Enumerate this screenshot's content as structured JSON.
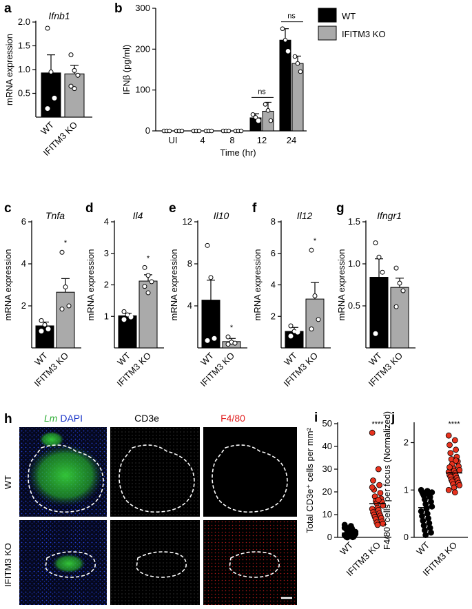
{
  "colors": {
    "wt": "#000000",
    "ko": "#aaaaaa",
    "ko_dot": "#e8321e",
    "dapi": "#1a35c8",
    "lm": "#2fce36",
    "f480": "#e12020",
    "cd3": "#ffffff"
  },
  "microscopy": {
    "header_lm": "Lm",
    "header_dapi": "DAPI",
    "header_cd3": "CD3e",
    "header_f480": "F4/80",
    "row_wt": "WT",
    "row_ko": "IFITM3 KO"
  },
  "chart_data": [
    {
      "panel": "a",
      "type": "bar",
      "title": "Ifnb1",
      "ylabel": "mRNA expression",
      "ylim": [
        0,
        2.0
      ],
      "yticks": [
        "0.5",
        "1.0",
        "1.5",
        "2.0"
      ],
      "ytick_values": [
        0.5,
        1.0,
        1.5,
        2.0
      ],
      "categories": [
        "WT",
        "IFITM3 KO"
      ],
      "values": [
        0.93,
        0.91
      ],
      "errors": [
        0.38,
        0.18
      ],
      "points": [
        [
          1.87,
          0.95,
          0.4,
          0.18
        ],
        [
          1.31,
          0.98,
          0.88,
          0.65,
          0.6
        ]
      ],
      "significance": ""
    },
    {
      "panel": "b",
      "type": "bar",
      "ylabel": "IFNβ (pg/ml)",
      "xlabel": "Time (hr)",
      "ylim": [
        0,
        300
      ],
      "yticks": [
        "0",
        "100",
        "200",
        "300"
      ],
      "ytick_values": [
        0,
        100,
        200,
        300
      ],
      "categories": [
        "UI",
        "4",
        "8",
        "12",
        "24"
      ],
      "series": [
        {
          "name": "WT",
          "values": [
            0,
            0,
            0,
            32,
            222
          ],
          "errors": [
            0,
            0,
            0,
            10,
            28
          ],
          "points": [
            [
              0,
              0,
              0
            ],
            [
              0,
              0,
              0
            ],
            [
              0,
              0,
              0
            ],
            [
              40,
              33,
              25
            ],
            [
              250,
              222,
              195
            ]
          ]
        },
        {
          "name": "IFITM3 KO",
          "values": [
            0,
            0,
            0,
            48,
            165
          ],
          "errors": [
            0,
            0,
            0,
            22,
            18
          ],
          "points": [
            [
              0,
              0,
              0
            ],
            [
              0,
              0,
              0
            ],
            [
              0,
              0,
              0
            ],
            [
              65,
              50,
              25
            ],
            [
              182,
              165,
              145
            ]
          ]
        }
      ],
      "significance": [
        {
          "group": "12",
          "text": "ns"
        },
        {
          "group": "24",
          "text": "ns"
        }
      ]
    },
    {
      "panel": "c",
      "type": "bar",
      "title": "Tnfa",
      "ylabel": "mRNA expression",
      "ylim": [
        0,
        6
      ],
      "yticks": [
        "2",
        "4",
        "6"
      ],
      "ytick_values": [
        2,
        4,
        6
      ],
      "categories": [
        "WT",
        "IFITM3 KO"
      ],
      "values": [
        1.05,
        2.65
      ],
      "errors": [
        0.18,
        0.65
      ],
      "points": [
        [
          1.3,
          1.1,
          0.9,
          0.8
        ],
        [
          4.55,
          2.9,
          2.0,
          1.85
        ]
      ],
      "significance": "*"
    },
    {
      "panel": "d",
      "type": "bar",
      "title": "Il4",
      "ylabel": "mRNA expression",
      "ylim": [
        0,
        4
      ],
      "yticks": [
        "1",
        "2",
        "3",
        "4"
      ],
      "ytick_values": [
        1,
        2,
        3,
        4
      ],
      "categories": [
        "WT",
        "IFITM3 KO"
      ],
      "values": [
        1.02,
        2.12
      ],
      "errors": [
        0.08,
        0.2
      ],
      "points": [
        [
          1.15,
          1.05,
          0.98,
          0.9
        ],
        [
          2.55,
          2.3,
          2.1,
          1.95,
          1.75
        ]
      ],
      "significance": "*"
    },
    {
      "panel": "e",
      "type": "bar",
      "title": "Il10",
      "ylabel": "mRNA expression",
      "ylim": [
        0,
        12
      ],
      "yticks": [
        "4",
        "8",
        "12"
      ],
      "ytick_values": [
        4,
        8,
        12
      ],
      "categories": [
        "WT",
        "IFITM3 KO"
      ],
      "values": [
        4.55,
        0.6
      ],
      "errors": [
        1.9,
        0.3
      ],
      "points": [
        [
          9.75,
          6.7,
          0.9,
          0.7
        ],
        [
          1.05,
          0.55,
          0.45,
          0.35
        ]
      ],
      "significance": "*"
    },
    {
      "panel": "f",
      "type": "bar",
      "title": "Il12",
      "ylabel": "mRNA expression",
      "ylim": [
        0,
        8
      ],
      "yticks": [
        "2",
        "4",
        "6",
        "8"
      ],
      "ytick_values": [
        2,
        4,
        6,
        8
      ],
      "categories": [
        "WT",
        "IFITM3 KO"
      ],
      "values": [
        1.05,
        3.1
      ],
      "errors": [
        0.25,
        1.05
      ],
      "points": [
        [
          1.4,
          1.05,
          1.0,
          0.75
        ],
        [
          6.2,
          3.3,
          1.8,
          1.2
        ]
      ],
      "significance": "*"
    },
    {
      "panel": "g",
      "type": "bar",
      "title": "Ifngr1",
      "ylabel": "mRNA expression",
      "ylim": [
        0,
        1.5
      ],
      "yticks": [
        "0.5",
        "1.0",
        "1.5"
      ],
      "ytick_values": [
        0.5,
        1.0,
        1.5
      ],
      "categories": [
        "WT",
        "IFITM3 KO"
      ],
      "values": [
        0.84,
        0.72
      ],
      "errors": [
        0.22,
        0.11
      ],
      "points": [
        [
          1.25,
          1.08,
          0.9,
          0.17
        ],
        [
          0.95,
          0.77,
          0.68,
          0.49
        ]
      ],
      "significance": ""
    },
    {
      "panel": "i",
      "type": "scatter",
      "ylabel": "Total CD3e⁺ cells per mm²",
      "ylim": [
        0,
        50
      ],
      "yticks": [
        "0",
        "10",
        "20",
        "30",
        "40",
        "50"
      ],
      "ytick_values": [
        0,
        10,
        20,
        30,
        40,
        50
      ],
      "categories": [
        "WT",
        "IFITM3 KO"
      ],
      "means": [
        1.9,
        14.8
      ],
      "points": [
        [
          5.5,
          5.0,
          4.5,
          4.0,
          3.5,
          3.0,
          2.8,
          2.5,
          2.2,
          2.0,
          1.8,
          1.5,
          1.3,
          1.0,
          0.8,
          0.6,
          0.4,
          0.2,
          0.1,
          0.0,
          0.3,
          0.7,
          1.1,
          1.7,
          2.4,
          3.2,
          4.2,
          0.5
        ],
        [
          46,
          30,
          25,
          23,
          21,
          19.5,
          18,
          17,
          16,
          15.5,
          15,
          14,
          13,
          12.5,
          12,
          11,
          10.5,
          10,
          9.5,
          9,
          8.5,
          8,
          7,
          6.5,
          6,
          5.5,
          22,
          16.5
        ]
      ],
      "significance": "****"
    },
    {
      "panel": "j",
      "type": "scatter",
      "ylabel": "F4/80⁺cells per focus (Normalized)",
      "ylim": [
        0,
        2.4
      ],
      "yticks": [
        "0",
        "1",
        "2"
      ],
      "ytick_values": [
        0,
        1,
        2
      ],
      "categories": [
        "WT",
        "IFITM3 KO"
      ],
      "means": [
        0.63,
        1.36
      ],
      "points": [
        [
          1.0,
          0.98,
          0.96,
          0.94,
          0.92,
          0.9,
          0.88,
          0.85,
          0.8,
          0.75,
          0.7,
          0.65,
          0.6,
          0.55,
          0.5,
          0.45,
          0.4,
          0.35,
          0.3,
          0.25,
          0.2,
          0.15,
          0.1,
          0.05,
          0.95,
          0.62
        ],
        [
          2.15,
          2.05,
          1.95,
          1.85,
          1.78,
          1.7,
          1.65,
          1.6,
          1.55,
          1.5,
          1.45,
          1.42,
          1.4,
          1.38,
          1.35,
          1.32,
          1.3,
          1.28,
          1.25,
          1.22,
          1.2,
          1.18,
          1.15,
          1.12,
          1.1,
          1.05,
          1.0,
          0.95,
          1.48,
          1.62
        ]
      ],
      "significance": "****"
    }
  ]
}
